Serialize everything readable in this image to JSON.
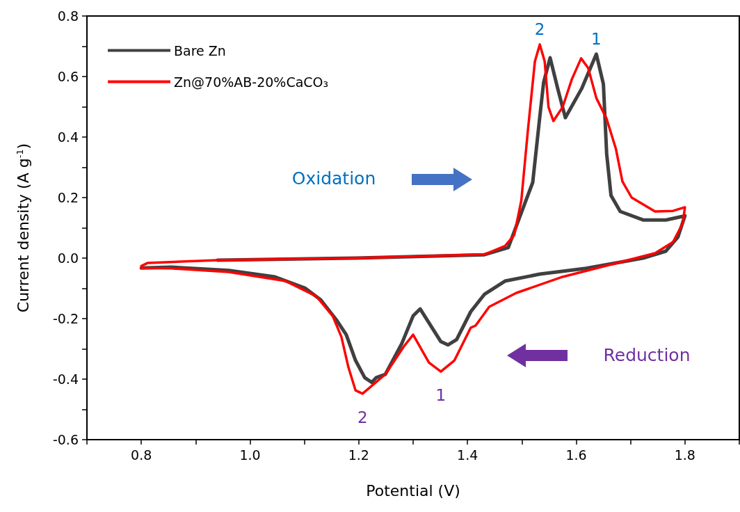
{
  "chart_data": {
    "type": "line",
    "xlabel": "Potential (V)",
    "ylabel": "Current density (A g$^{-1}$)",
    "xlim": [
      0.7,
      1.9
    ],
    "xticks": [
      {
        "value": 0.7,
        "label": null
      },
      {
        "value": 0.8,
        "label": "0.8"
      },
      {
        "value": 0.9,
        "label": null
      },
      {
        "value": 1.0,
        "label": "1.0"
      },
      {
        "value": 1.1,
        "label": null
      },
      {
        "value": 1.2,
        "label": "1.2"
      },
      {
        "value": 1.3,
        "label": null
      },
      {
        "value": 1.4,
        "label": "1.4"
      },
      {
        "value": 1.5,
        "label": null
      },
      {
        "value": 1.6,
        "label": "1.6"
      },
      {
        "value": 1.7,
        "label": null
      },
      {
        "value": 1.8,
        "label": "1.8"
      },
      {
        "value": 1.9,
        "label": null
      }
    ],
    "ylim": [
      -0.6,
      0.8
    ],
    "yticks": [
      {
        "value": -0.6,
        "label": "-0.6"
      },
      {
        "value": -0.5,
        "label": null
      },
      {
        "value": -0.4,
        "label": "-0.4"
      },
      {
        "value": -0.3,
        "label": null
      },
      {
        "value": -0.2,
        "label": "-0.2"
      },
      {
        "value": -0.1,
        "label": null
      },
      {
        "value": 0,
        "label": "0.0"
      },
      {
        "value": 0.1,
        "label": null
      },
      {
        "value": 0.2,
        "label": "0.2"
      },
      {
        "value": 0.3,
        "label": null
      },
      {
        "value": 0.4,
        "label": "0.4"
      },
      {
        "value": 0.5,
        "label": null
      },
      {
        "value": 0.6,
        "label": "0.6"
      },
      {
        "value": 0.7,
        "label": null
      },
      {
        "value": 0.8,
        "label": "0.8"
      }
    ],
    "grid": false,
    "legend": "top left",
    "marker": "none",
    "line_style": "solid",
    "series": [
      {
        "name": "Bare Zn",
        "color": "#404040",
        "x": [
          0.94,
          1.194,
          1.431,
          1.475,
          1.52,
          1.532,
          1.54,
          1.552,
          1.566,
          1.58,
          1.61,
          1.637,
          1.65,
          1.656,
          1.664,
          1.681,
          1.723,
          1.765,
          1.796,
          1.8,
          1.787,
          1.765,
          1.723,
          1.618,
          1.533,
          1.469,
          1.431,
          1.406,
          1.38,
          1.364,
          1.351,
          1.313,
          1.3,
          1.279,
          1.249,
          1.232,
          1.224,
          1.211,
          1.194,
          1.177,
          1.16,
          1.13,
          1.101,
          1.046,
          0.961,
          0.855,
          0.8
        ],
        "values": [
          -0.007,
          0.0,
          0.011,
          0.035,
          0.25,
          0.45,
          0.58,
          0.662,
          0.56,
          0.464,
          0.56,
          0.674,
          0.575,
          0.345,
          0.207,
          0.154,
          0.126,
          0.126,
          0.138,
          0.14,
          0.069,
          0.023,
          0.0,
          -0.034,
          -0.053,
          -0.076,
          -0.12,
          -0.177,
          -0.269,
          -0.287,
          -0.276,
          -0.168,
          -0.191,
          -0.283,
          -0.384,
          -0.395,
          -0.411,
          -0.395,
          -0.338,
          -0.253,
          -0.207,
          -0.138,
          -0.099,
          -0.062,
          -0.041,
          -0.03,
          -0.033
        ]
      },
      {
        "name": "Zn@70%AB-20%CaCO₃",
        "color": "#ff0000",
        "x": [
          0.8,
          0.812,
          0.94,
          1.194,
          1.431,
          1.469,
          1.486,
          1.499,
          1.511,
          1.524,
          1.533,
          1.542,
          1.549,
          1.558,
          1.575,
          1.592,
          1.609,
          1.622,
          1.637,
          1.656,
          1.673,
          1.685,
          1.702,
          1.745,
          1.778,
          1.8,
          1.796,
          1.778,
          1.745,
          1.66,
          1.575,
          1.49,
          1.44,
          1.415,
          1.406,
          1.376,
          1.351,
          1.329,
          1.3,
          1.283,
          1.249,
          1.207,
          1.194,
          1.181,
          1.168,
          1.152,
          1.122,
          1.066,
          0.961,
          0.855,
          0.8
        ],
        "values": [
          -0.026,
          -0.016,
          -0.007,
          0.0,
          0.012,
          0.04,
          0.076,
          0.19,
          0.42,
          0.65,
          0.706,
          0.65,
          0.499,
          0.453,
          0.499,
          0.591,
          0.66,
          0.628,
          0.529,
          0.46,
          0.361,
          0.253,
          0.2,
          0.154,
          0.156,
          0.168,
          0.115,
          0.053,
          0.016,
          -0.023,
          -0.062,
          -0.115,
          -0.161,
          -0.223,
          -0.23,
          -0.338,
          -0.375,
          -0.345,
          -0.253,
          -0.292,
          -0.384,
          -0.448,
          -0.437,
          -0.361,
          -0.26,
          -0.191,
          -0.126,
          -0.076,
          -0.046,
          -0.034,
          -0.033
        ]
      }
    ],
    "annotations": [
      {
        "text": "2",
        "x": 1.533,
        "y": 0.706
      },
      {
        "text": "1",
        "x": 1.637,
        "y": 0.674
      },
      {
        "text": "1",
        "x": 1.351,
        "y": -0.375
      },
      {
        "text": "2",
        "x": 1.207,
        "y": -0.448
      },
      "Oxidation",
      "Reduction"
    ]
  }
}
